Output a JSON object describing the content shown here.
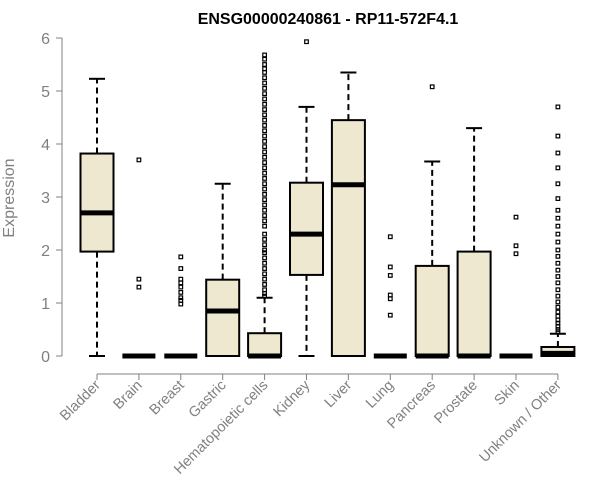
{
  "chart_data": {
    "type": "boxplot",
    "title": "ENSG00000240861 - RP11-572F4.1",
    "xlabel": "",
    "ylabel": "Expression",
    "ylim": [
      0,
      6
    ],
    "yticks": [
      "0",
      "1",
      "2",
      "3",
      "4",
      "5",
      "6"
    ],
    "box_fill": "#EEE8D0",
    "categories": [
      "Bladder",
      "Brain",
      "Breast",
      "Gastric",
      "Hematopoietic cells",
      "Kidney",
      "Liver",
      "Lung",
      "Pancreas",
      "Prostate",
      "Skin",
      "Unknown / Other"
    ],
    "boxes": [
      {
        "label": "Bladder",
        "whisker_low": 0,
        "q1": 1.97,
        "median": 2.7,
        "q3": 3.82,
        "whisker_high": 5.23,
        "outliers": []
      },
      {
        "label": "Brain",
        "whisker_low": 0,
        "q1": 0,
        "median": 0,
        "q3": 0,
        "whisker_high": 0,
        "outliers": [
          3.7,
          1.45,
          1.3
        ]
      },
      {
        "label": "Breast",
        "whisker_low": 0,
        "q1": 0,
        "median": 0,
        "q3": 0,
        "whisker_high": 0,
        "outliers": [
          1.87,
          1.65,
          1.45,
          1.38,
          1.3,
          1.2,
          1.1,
          1.05,
          0.98
        ]
      },
      {
        "label": "Gastric",
        "whisker_low": 0,
        "q1": 0,
        "median": 0.85,
        "q3": 1.44,
        "whisker_high": 3.25,
        "outliers": []
      },
      {
        "label": "Hematopoietic cells",
        "whisker_low": 0,
        "q1": 0,
        "median": 0,
        "q3": 0.43,
        "whisker_high": 1.1,
        "outliers": [
          5.68,
          5.6,
          5.5,
          5.42,
          5.35,
          5.25,
          5.15,
          5.05,
          4.95,
          4.85,
          4.75,
          4.65,
          4.55,
          4.45,
          4.35,
          4.25,
          4.15,
          4.05,
          3.95,
          3.85,
          3.75,
          3.65,
          3.55,
          3.45,
          3.35,
          3.25,
          3.15,
          3.05,
          2.95,
          2.85,
          2.75,
          2.65,
          2.55,
          2.45,
          2.3,
          2.2,
          2.1,
          2.0,
          1.95,
          1.85,
          1.75,
          1.65,
          1.55,
          1.45,
          1.35,
          1.25,
          1.18,
          1.13
        ]
      },
      {
        "label": "Kidney",
        "whisker_low": 0,
        "q1": 1.53,
        "median": 2.3,
        "q3": 3.27,
        "whisker_high": 4.7,
        "outliers": [
          5.93
        ]
      },
      {
        "label": "Liver",
        "whisker_low": 0,
        "q1": 0,
        "median": 3.23,
        "q3": 4.45,
        "whisker_high": 5.35,
        "outliers": []
      },
      {
        "label": "Lung",
        "whisker_low": 0,
        "q1": 0,
        "median": 0,
        "q3": 0,
        "whisker_high": 0,
        "outliers": [
          2.25,
          1.68,
          1.52,
          1.15,
          1.08,
          0.77
        ]
      },
      {
        "label": "Pancreas",
        "whisker_low": 0,
        "q1": 0,
        "median": 0,
        "q3": 1.7,
        "whisker_high": 3.67,
        "outliers": [
          5.08
        ]
      },
      {
        "label": "Prostate",
        "whisker_low": 0,
        "q1": 0,
        "median": 0,
        "q3": 1.97,
        "whisker_high": 4.3,
        "outliers": []
      },
      {
        "label": "Skin",
        "whisker_low": 0,
        "q1": 0,
        "median": 0,
        "q3": 0,
        "whisker_high": 0,
        "outliers": [
          2.62,
          2.08,
          1.93
        ]
      },
      {
        "label": "Unknown / Other",
        "whisker_low": 0,
        "q1": 0,
        "median": 0.05,
        "q3": 0.17,
        "whisker_high": 0.42,
        "outliers": [
          4.7,
          4.15,
          3.83,
          3.55,
          3.25,
          2.97,
          2.75,
          2.6,
          2.45,
          2.3,
          2.15,
          2.0,
          1.88,
          1.75,
          1.62,
          1.5,
          1.38,
          1.25,
          1.13,
          1.02,
          0.92,
          0.83,
          0.75,
          0.68,
          0.62,
          0.56,
          0.5,
          0.46
        ]
      }
    ]
  }
}
